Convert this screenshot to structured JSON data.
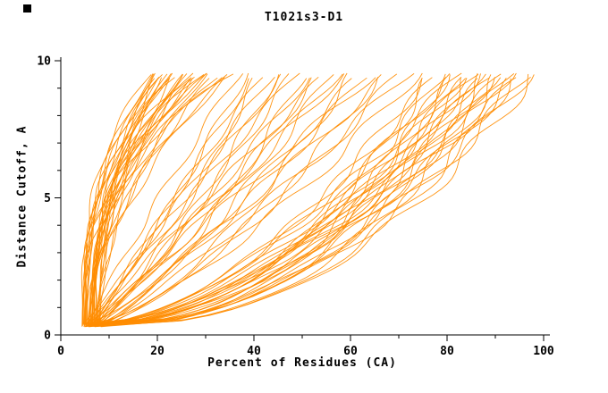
{
  "chart_data": {
    "type": "line",
    "title": "T1021s3-D1",
    "xlabel": "Percent of Residues (CA)",
    "ylabel": "Distance Cutoff, A",
    "xlim": [
      0,
      100
    ],
    "ylim": [
      0,
      10
    ],
    "x_ticks_major": [
      0,
      20,
      40,
      60,
      80,
      100
    ],
    "x_ticks_minor": [
      10,
      30,
      50,
      70,
      90
    ],
    "y_ticks_major": [
      0,
      5,
      10
    ],
    "y_ticks_minor": [
      1,
      2,
      3,
      4,
      6,
      7,
      8,
      9
    ],
    "grid": false,
    "legend": "none",
    "line_color": "#FF8C00",
    "background_color": "#FFFFFF",
    "axis_color": "#000000",
    "y_curve_start": 0.3,
    "y_curve_end": 9.55,
    "series_note": "Each curve is [x_start_percent, x_at_top_cutoff_percent, shape_exponent]; x(y)=x0+(xtop-x0)*t^p with t normalized cutoff",
    "curves": [
      [
        4.4,
        18.5,
        2.8
      ],
      [
        5.0,
        19,
        2.2
      ],
      [
        5.6,
        19.5,
        3.0
      ],
      [
        6.2,
        20,
        1.8
      ],
      [
        6.8,
        20.2,
        2.5
      ],
      [
        7.4,
        20.5,
        2.9
      ],
      [
        8.0,
        21,
        2.1
      ],
      [
        4.7,
        21.3,
        2.6
      ],
      [
        5.3,
        21.8,
        3.2
      ],
      [
        5.9,
        22,
        1.9
      ],
      [
        6.5,
        22.4,
        2.4
      ],
      [
        7.1,
        23,
        2.8
      ],
      [
        7.7,
        23.5,
        2.0
      ],
      [
        4.5,
        24,
        2.6
      ],
      [
        5.1,
        24.5,
        3.1
      ],
      [
        5.7,
        25,
        1.7
      ],
      [
        6.3,
        25.5,
        2.3
      ],
      [
        6.9,
        26,
        2.7
      ],
      [
        7.5,
        26.5,
        2.0
      ],
      [
        8.1,
        27,
        2.5
      ],
      [
        4.8,
        27.5,
        2.9
      ],
      [
        5.4,
        28,
        1.8
      ],
      [
        6.0,
        28.5,
        2.2
      ],
      [
        6.6,
        29,
        2.7
      ],
      [
        7.2,
        29.5,
        3.0
      ],
      [
        7.8,
        30,
        1.9
      ],
      [
        4.6,
        30.5,
        2.4
      ],
      [
        5.2,
        31,
        2.8
      ],
      [
        5.8,
        32,
        1.7
      ],
      [
        6.4,
        33,
        2.2
      ],
      [
        7.0,
        34,
        2.6
      ],
      [
        7.6,
        35,
        1.9
      ],
      [
        8.2,
        35.5,
        2.3
      ],
      [
        4.9,
        36,
        2.7
      ],
      [
        5.5,
        37,
        1.1
      ],
      [
        6.1,
        38.5,
        0.9
      ],
      [
        6.7,
        40,
        1.0
      ],
      [
        7.3,
        41,
        0.8
      ],
      [
        7.9,
        42.5,
        1.15
      ],
      [
        4.6,
        44,
        0.95
      ],
      [
        5.2,
        45,
        0.75
      ],
      [
        5.8,
        46.5,
        1.05
      ],
      [
        6.4,
        48,
        0.85
      ],
      [
        7.0,
        49,
        1.1
      ],
      [
        7.6,
        50.5,
        0.7
      ],
      [
        8.2,
        52,
        0.95
      ],
      [
        4.8,
        53.5,
        0.8
      ],
      [
        5.4,
        55,
        1.0
      ],
      [
        6.0,
        56,
        0.72
      ],
      [
        6.6,
        57.5,
        0.9
      ],
      [
        7.2,
        59,
        1.05
      ],
      [
        7.8,
        60.5,
        0.68
      ],
      [
        8.4,
        62,
        0.88
      ],
      [
        5.0,
        63.5,
        0.78
      ],
      [
        5.6,
        65,
        0.98
      ],
      [
        6.2,
        66.5,
        0.66
      ],
      [
        6.8,
        68,
        0.9
      ],
      [
        7.4,
        70,
        0.74
      ],
      [
        8.0,
        72,
        0.86
      ],
      [
        5.3,
        74,
        0.7
      ],
      [
        5.9,
        76,
        0.55
      ],
      [
        6.5,
        77,
        0.45
      ],
      [
        7.1,
        78,
        0.6
      ],
      [
        7.7,
        79,
        0.5
      ],
      [
        8.3,
        80,
        0.42
      ],
      [
        4.7,
        81,
        0.58
      ],
      [
        5.3,
        82,
        0.48
      ],
      [
        5.9,
        82.5,
        0.62
      ],
      [
        6.5,
        83,
        0.44
      ],
      [
        7.1,
        84,
        0.55
      ],
      [
        7.7,
        84.5,
        0.4
      ],
      [
        8.3,
        85,
        0.52
      ],
      [
        4.9,
        86,
        0.6
      ],
      [
        5.5,
        86.5,
        0.46
      ],
      [
        6.1,
        87,
        0.56
      ],
      [
        6.7,
        88,
        0.42
      ],
      [
        7.3,
        88.5,
        0.5
      ],
      [
        7.9,
        89,
        0.62
      ],
      [
        8.5,
        90,
        0.44
      ],
      [
        5.1,
        90.5,
        0.54
      ],
      [
        5.7,
        91,
        0.4
      ],
      [
        6.3,
        92,
        0.58
      ],
      [
        6.9,
        92.5,
        0.47
      ],
      [
        7.5,
        93,
        0.55
      ],
      [
        8.1,
        94,
        0.41
      ],
      [
        5.2,
        95,
        0.52
      ],
      [
        5.8,
        96,
        0.6
      ],
      [
        6.4,
        96.5,
        0.45
      ],
      [
        7.0,
        97,
        0.5
      ],
      [
        7.6,
        98,
        0.43
      ]
    ]
  }
}
